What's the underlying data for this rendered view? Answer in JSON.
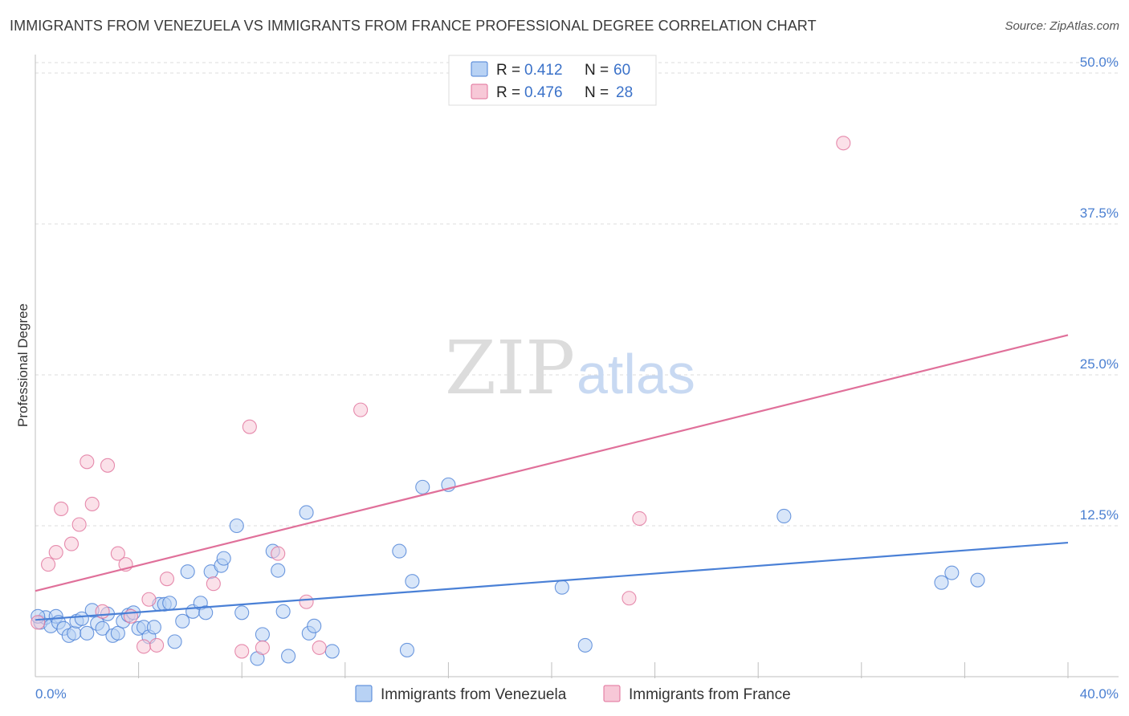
{
  "title": "IMMIGRANTS FROM VENEZUELA VS IMMIGRANTS FROM FRANCE PROFESSIONAL DEGREE CORRELATION CHART",
  "source": "Source: ZipAtlas.com",
  "watermark": {
    "zip": "ZIP",
    "atlas": "atlas"
  },
  "colors": {
    "blue": "#4a80d6",
    "blue_fill": "#b8d2f4",
    "pink": "#e0709a",
    "pink_fill": "#f7c8d7",
    "tick": "#4a7fd1",
    "grid": "#dddddd"
  },
  "legend_top": {
    "rows": [
      {
        "series": "venezuela",
        "r_label": "R =",
        "r_value": "0.412",
        "n_label": "N =",
        "n_value": "60"
      },
      {
        "series": "france",
        "r_label": "R =",
        "r_value": "0.476",
        "n_label": "N =",
        "n_value": "28"
      }
    ]
  },
  "chart_data": {
    "type": "scatter",
    "title": "IMMIGRANTS FROM VENEZUELA VS IMMIGRANTS FROM FRANCE PROFESSIONAL DEGREE CORRELATION CHART",
    "xlabel": "",
    "ylabel": "Professional Degree",
    "xlim": [
      0,
      40
    ],
    "ylim": [
      0,
      51
    ],
    "x_tick_labels": [
      {
        "value": 0,
        "label": "0.0%"
      },
      {
        "value": 40,
        "label": "40.0%"
      }
    ],
    "x_minor_ticks": [
      4,
      8,
      12,
      16,
      20,
      24,
      28,
      32,
      36,
      40
    ],
    "y_ticks": [
      {
        "value": 12.5,
        "label": "12.5%"
      },
      {
        "value": 25,
        "label": "25.0%"
      },
      {
        "value": 37.5,
        "label": "37.5%"
      },
      {
        "value": 50,
        "label": "50.0%"
      }
    ],
    "grid": true,
    "legend_position": "bottom-center",
    "series": [
      {
        "name": "Immigrants from Venezuela",
        "color": "blue",
        "trend": {
          "x": [
            0,
            40
          ],
          "y": [
            4.7,
            11.1
          ]
        },
        "points": [
          [
            0.2,
            4.5
          ],
          [
            0.4,
            4.9
          ],
          [
            0.6,
            4.2
          ],
          [
            0.8,
            5.0
          ],
          [
            0.9,
            4.5
          ],
          [
            1.1,
            4.0
          ],
          [
            1.3,
            3.4
          ],
          [
            1.5,
            3.6
          ],
          [
            1.6,
            4.6
          ],
          [
            1.8,
            4.8
          ],
          [
            2.0,
            3.6
          ],
          [
            2.2,
            5.5
          ],
          [
            2.4,
            4.4
          ],
          [
            2.6,
            4.0
          ],
          [
            2.8,
            5.2
          ],
          [
            3.0,
            3.4
          ],
          [
            3.2,
            3.6
          ],
          [
            3.4,
            4.6
          ],
          [
            3.6,
            5.1
          ],
          [
            3.8,
            5.3
          ],
          [
            4.0,
            4.0
          ],
          [
            4.2,
            4.1
          ],
          [
            4.4,
            3.3
          ],
          [
            4.6,
            4.1
          ],
          [
            4.8,
            6.0
          ],
          [
            5.0,
            6.0
          ],
          [
            5.2,
            6.1
          ],
          [
            5.4,
            2.9
          ],
          [
            5.7,
            4.6
          ],
          [
            5.9,
            8.7
          ],
          [
            6.1,
            5.4
          ],
          [
            6.4,
            6.1
          ],
          [
            6.6,
            5.3
          ],
          [
            6.8,
            8.7
          ],
          [
            7.2,
            9.2
          ],
          [
            7.3,
            9.8
          ],
          [
            7.8,
            12.5
          ],
          [
            8.0,
            5.3
          ],
          [
            8.6,
            1.5
          ],
          [
            8.8,
            3.5
          ],
          [
            9.2,
            10.4
          ],
          [
            9.4,
            8.8
          ],
          [
            9.6,
            5.4
          ],
          [
            9.8,
            1.7
          ],
          [
            10.5,
            13.6
          ],
          [
            10.6,
            3.6
          ],
          [
            10.8,
            4.2
          ],
          [
            11.5,
            2.1
          ],
          [
            14.1,
            10.4
          ],
          [
            14.4,
            2.2
          ],
          [
            14.6,
            7.9
          ],
          [
            15.0,
            15.7
          ],
          [
            16.0,
            15.9
          ],
          [
            20.4,
            7.4
          ],
          [
            21.3,
            2.6
          ],
          [
            29.0,
            13.3
          ],
          [
            35.1,
            7.8
          ],
          [
            35.5,
            8.6
          ],
          [
            36.5,
            8.0
          ],
          [
            0.1,
            5.0
          ]
        ]
      },
      {
        "name": "Immigrants from France",
        "color": "pink",
        "trend": {
          "x": [
            0,
            40
          ],
          "y": [
            7.1,
            28.3
          ]
        },
        "points": [
          [
            0.1,
            4.5
          ],
          [
            0.5,
            9.3
          ],
          [
            0.8,
            10.3
          ],
          [
            1.0,
            13.9
          ],
          [
            1.4,
            11.0
          ],
          [
            1.7,
            12.6
          ],
          [
            2.0,
            17.8
          ],
          [
            2.2,
            14.3
          ],
          [
            2.6,
            5.4
          ],
          [
            2.8,
            17.5
          ],
          [
            3.2,
            10.2
          ],
          [
            3.5,
            9.3
          ],
          [
            3.7,
            5.0
          ],
          [
            4.2,
            2.5
          ],
          [
            4.4,
            6.4
          ],
          [
            4.7,
            2.6
          ],
          [
            5.1,
            8.1
          ],
          [
            6.9,
            7.7
          ],
          [
            8.0,
            2.1
          ],
          [
            8.3,
            20.7
          ],
          [
            8.8,
            2.4
          ],
          [
            9.4,
            10.2
          ],
          [
            10.5,
            6.2
          ],
          [
            11.0,
            2.4
          ],
          [
            12.6,
            22.1
          ],
          [
            23.0,
            6.5
          ],
          [
            23.4,
            13.1
          ],
          [
            31.3,
            44.2
          ]
        ]
      }
    ]
  },
  "bottom_legend": [
    {
      "series": "venezuela",
      "label": "Immigrants from Venezuela"
    },
    {
      "series": "france",
      "label": "Immigrants from France"
    }
  ]
}
